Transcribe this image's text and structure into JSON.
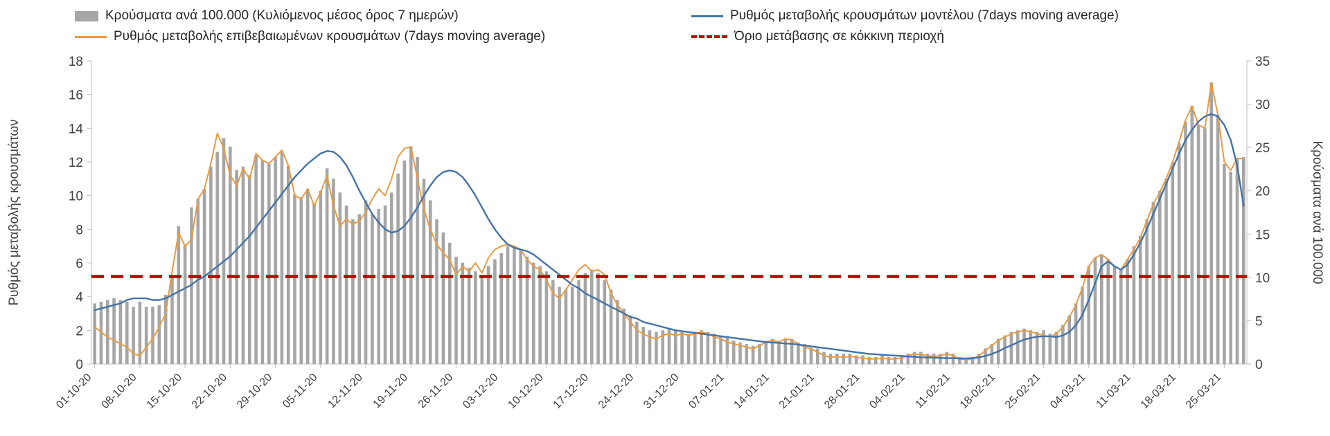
{
  "legend": {
    "bars": "Κρούσματα ανά 100.000 (Κυλιόμενος μέσος όρος 7 ημερών)",
    "model": "Ρυθμός μεταβολής κρουσμάτων μοντέλου (7days moving average)",
    "confirmed": "Ρυθμός μεταβολής επιβεβαιωμένων κρουσμάτων (7days moving average)",
    "threshold": "Όριο μετάβασης σε κόκκινη περιοχή"
  },
  "axes": {
    "left_label": "Ρυθμός μεταβολής κρουσμάτων",
    "right_label": "Κρούσματα ανά 100.000",
    "left_ticks": [
      0,
      2,
      4,
      6,
      8,
      10,
      12,
      14,
      16,
      18
    ],
    "right_ticks": [
      0,
      5,
      10,
      15,
      20,
      25,
      30,
      35
    ]
  },
  "colors": {
    "bar": "#a6a6a6",
    "confirmed": "#ea9a3e",
    "model": "#4472a8",
    "threshold": "#c00000"
  },
  "chart_data": {
    "type": "combo-bar-line",
    "left_ylim": [
      0,
      18
    ],
    "right_ylim": [
      0,
      35
    ],
    "x_tick_every": 7,
    "x_tick_labels": [
      "01-10-20",
      "08-10-20",
      "15-10-20",
      "22-10-20",
      "29-10-20",
      "05-11-20",
      "12-11-20",
      "19-11-20",
      "26-11-20",
      "03-12-20",
      "10-12-20",
      "17-12-20",
      "24-12-20",
      "31-12-20",
      "07-01-21",
      "14-01-21",
      "21-01-21",
      "28-01-21",
      "04-02-21",
      "11-02-21",
      "18-02-21",
      "25-02-21",
      "04-03-21",
      "11-03-21",
      "18-03-21",
      "25-03-21"
    ],
    "series": [
      {
        "key": "cases_per_100k",
        "name": "Κρούσματα ανά 100.000 (Κυλιόμενος μέσος όρος 7 ημερών)",
        "type": "bar",
        "axis": "right",
        "color": "#a6a6a6",
        "values": [
          7.0,
          7.2,
          7.4,
          7.6,
          7.4,
          7.2,
          6.6,
          7.2,
          6.6,
          6.6,
          6.8,
          8.0,
          10.1,
          15.9,
          13.8,
          18.1,
          19.1,
          20.2,
          22.8,
          24.5,
          26.1,
          25.1,
          22.4,
          22.8,
          21.8,
          24.1,
          23.5,
          23.1,
          23.9,
          24.5,
          22.9,
          19.6,
          19.3,
          20.2,
          18.5,
          20.0,
          22.6,
          21.4,
          19.8,
          18.3,
          16.7,
          17.3,
          18.9,
          17.3,
          17.9,
          18.3,
          19.8,
          22.0,
          23.5,
          25.1,
          23.9,
          21.4,
          18.9,
          16.7,
          15.2,
          14.0,
          12.4,
          11.7,
          11.1,
          10.7,
          10.3,
          11.3,
          12.1,
          12.8,
          13.6,
          13.6,
          13.2,
          12.4,
          11.7,
          11.3,
          10.7,
          9.7,
          8.9,
          8.6,
          8.9,
          9.7,
          10.5,
          10.9,
          10.5,
          9.7,
          8.6,
          7.4,
          6.4,
          5.6,
          4.9,
          4.3,
          3.9,
          3.7,
          3.9,
          4.1,
          3.9,
          3.7,
          3.5,
          3.7,
          3.9,
          3.7,
          3.5,
          3.3,
          3.1,
          2.7,
          2.5,
          2.3,
          2.1,
          2.3,
          2.7,
          2.9,
          2.7,
          2.9,
          2.9,
          2.5,
          2.3,
          1.9,
          1.8,
          1.4,
          1.2,
          1.2,
          1.2,
          1.2,
          1.0,
          1.0,
          0.8,
          0.8,
          1.0,
          0.8,
          0.8,
          1.0,
          1.2,
          1.4,
          1.4,
          1.2,
          1.2,
          1.2,
          1.4,
          1.2,
          0.8,
          0.6,
          0.8,
          1.2,
          1.8,
          2.3,
          2.9,
          3.3,
          3.7,
          3.9,
          4.1,
          3.9,
          3.7,
          3.9,
          3.5,
          3.7,
          4.5,
          5.6,
          7.0,
          8.9,
          11.3,
          12.3,
          12.6,
          12.1,
          11.3,
          10.9,
          12.1,
          13.6,
          14.8,
          16.7,
          18.7,
          20.0,
          21.4,
          23.3,
          25.5,
          28.0,
          29.8,
          27.6,
          27.2,
          32.5,
          28.8,
          23.1,
          22.2,
          23.7,
          23.9
        ]
      },
      {
        "key": "confirmed_rate",
        "name": "Ρυθμός μεταβολής επιβεβαιωμένων κρουσμάτων (7days moving average)",
        "type": "line",
        "axis": "left",
        "color": "#ea9a3e",
        "values": [
          2.2,
          1.9,
          1.6,
          1.4,
          1.2,
          1.0,
          0.6,
          0.5,
          1.0,
          1.5,
          2.2,
          3.0,
          5.5,
          7.8,
          7.0,
          7.4,
          9.8,
          10.4,
          11.9,
          13.7,
          12.8,
          11.2,
          10.6,
          11.6,
          11.0,
          12.5,
          12.1,
          11.9,
          12.3,
          12.7,
          11.8,
          10.0,
          9.8,
          10.4,
          9.4,
          10.2,
          11.2,
          9.4,
          8.2,
          8.6,
          8.3,
          8.5,
          9.0,
          9.8,
          10.4,
          10.0,
          11.0,
          12.3,
          12.8,
          12.9,
          11.0,
          9.2,
          8.0,
          7.1,
          6.6,
          6.2,
          5.3,
          5.8,
          5.5,
          6.0,
          5.4,
          6.3,
          6.8,
          7.0,
          7.1,
          7.0,
          6.8,
          6.2,
          5.8,
          5.6,
          5.0,
          4.2,
          3.9,
          4.4,
          5.0,
          5.6,
          5.9,
          5.5,
          5.6,
          5.3,
          4.2,
          3.5,
          3.0,
          2.5,
          2.0,
          1.8,
          1.6,
          1.5,
          1.7,
          1.8,
          1.7,
          1.8,
          1.7,
          1.8,
          1.9,
          1.8,
          1.6,
          1.5,
          1.3,
          1.2,
          1.1,
          1.0,
          0.9,
          1.1,
          1.3,
          1.4,
          1.3,
          1.5,
          1.4,
          1.2,
          1.0,
          0.9,
          0.7,
          0.5,
          0.4,
          0.45,
          0.4,
          0.45,
          0.4,
          0.35,
          0.3,
          0.3,
          0.35,
          0.3,
          0.3,
          0.35,
          0.5,
          0.6,
          0.55,
          0.5,
          0.45,
          0.5,
          0.6,
          0.5,
          0.3,
          0.25,
          0.3,
          0.5,
          0.8,
          1.1,
          1.4,
          1.6,
          1.8,
          1.9,
          2.0,
          1.9,
          1.8,
          1.7,
          1.6,
          1.8,
          2.2,
          2.8,
          3.5,
          4.5,
          5.8,
          6.3,
          6.5,
          6.2,
          5.8,
          5.6,
          6.2,
          6.8,
          7.5,
          8.5,
          9.5,
          10.2,
          11.0,
          12.0,
          13.2,
          14.5,
          15.3,
          14.2,
          14.0,
          16.7,
          14.8,
          12.0,
          11.5,
          12.2,
          12.2
        ]
      },
      {
        "key": "model_rate",
        "name": "Ρυθμός μεταβολής κρουσμάτων μοντέλου (7days moving average)",
        "type": "line",
        "axis": "left",
        "color": "#4472a8",
        "values": [
          3.2,
          3.3,
          3.4,
          3.5,
          3.6,
          3.8,
          3.9,
          3.9,
          3.9,
          3.8,
          3.8,
          3.9,
          4.1,
          4.3,
          4.5,
          4.7,
          5.0,
          5.2,
          5.5,
          5.8,
          6.1,
          6.4,
          6.8,
          7.2,
          7.6,
          8.1,
          8.6,
          9.1,
          9.6,
          10.1,
          10.6,
          11.1,
          11.5,
          11.9,
          12.2,
          12.5,
          12.65,
          12.6,
          12.3,
          11.8,
          11.1,
          10.3,
          9.6,
          8.9,
          8.4,
          8.0,
          7.8,
          7.9,
          8.2,
          8.7,
          9.3,
          10.0,
          10.6,
          11.1,
          11.4,
          11.5,
          11.4,
          11.1,
          10.6,
          10.0,
          9.3,
          8.6,
          8.0,
          7.5,
          7.1,
          6.9,
          6.8,
          6.7,
          6.5,
          6.2,
          5.9,
          5.6,
          5.3,
          5.0,
          4.7,
          4.5,
          4.2,
          4.0,
          3.8,
          3.6,
          3.4,
          3.2,
          3.0,
          2.8,
          2.7,
          2.5,
          2.4,
          2.3,
          2.2,
          2.1,
          2.0,
          1.95,
          1.9,
          1.85,
          1.8,
          1.75,
          1.7,
          1.65,
          1.6,
          1.55,
          1.5,
          1.45,
          1.4,
          1.35,
          1.3,
          1.28,
          1.25,
          1.22,
          1.2,
          1.15,
          1.1,
          1.05,
          1.0,
          0.95,
          0.9,
          0.85,
          0.8,
          0.75,
          0.7,
          0.65,
          0.6,
          0.58,
          0.55,
          0.52,
          0.5,
          0.48,
          0.45,
          0.43,
          0.4,
          0.39,
          0.38,
          0.36,
          0.35,
          0.34,
          0.33,
          0.33,
          0.35,
          0.4,
          0.48,
          0.6,
          0.75,
          0.95,
          1.1,
          1.3,
          1.45,
          1.55,
          1.62,
          1.65,
          1.65,
          1.6,
          1.7,
          1.9,
          2.3,
          2.9,
          3.8,
          4.8,
          5.8,
          6.1,
          5.8,
          5.6,
          5.9,
          6.5,
          7.2,
          8.0,
          8.9,
          9.8,
          10.7,
          11.6,
          12.5,
          13.3,
          13.9,
          14.4,
          14.7,
          14.85,
          14.7,
          14.2,
          13.3,
          11.8,
          9.4
        ]
      },
      {
        "key": "red_zone_threshold",
        "name": "Όριο μετάβασης σε κόκκινη περιοχή",
        "type": "hline",
        "axis": "left",
        "value": 5.2,
        "value_right_axis": 10,
        "color": "#c00000"
      }
    ]
  }
}
